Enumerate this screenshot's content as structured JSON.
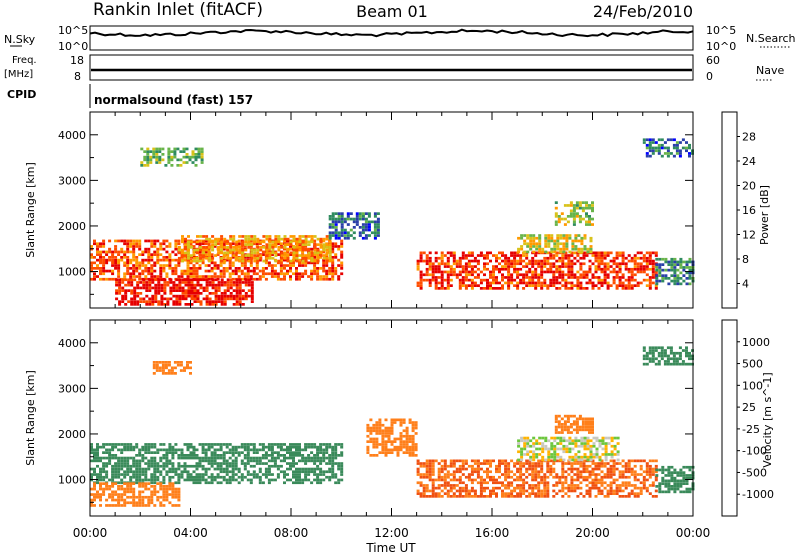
{
  "header": {
    "station": "Rankin Inlet (fitACF)",
    "beam": "Beam 01",
    "date": "24/Feb/2010"
  },
  "strip_panels": {
    "nsky": {
      "left_label": "N.Sky",
      "left_ticks": [
        "10^5",
        "10^0"
      ],
      "right_label": "N.Search",
      "right_ticks": [
        "10^5",
        "10^0"
      ]
    },
    "freq": {
      "left_label_1": "Freq.",
      "left_label_2": "[MHz]",
      "left_ticks": [
        "18",
        "8"
      ],
      "right_label": "Nave",
      "right_ticks": [
        "60",
        "0"
      ]
    },
    "cpid": {
      "label": "CPID",
      "text": "normalsound (fast) 157"
    }
  },
  "chart_data": [
    {
      "type": "heatmap",
      "title": "",
      "xlabel": "",
      "ylabel": "Slant Range [km]",
      "xlim_hours": [
        0,
        24
      ],
      "ylim_km": [
        200,
        4500
      ],
      "yticks": [
        1000,
        2000,
        3000,
        4000
      ],
      "colorbar": {
        "label": "Power [dB]",
        "ticks": [
          "4",
          "8",
          "12",
          "16",
          "20",
          "24",
          "28"
        ],
        "colors": [
          "#0000ff",
          "#2a3fa8",
          "#2f8b5f",
          "#68b449",
          "#d8c21a",
          "#ff9a00",
          "#ff4d00",
          "#e60000"
        ]
      },
      "regions": [
        {
          "t": [
            0.0,
            10.0
          ],
          "r": [
            800,
            1700
          ],
          "level": 24
        },
        {
          "t": [
            1.0,
            6.5
          ],
          "r": [
            250,
            800
          ],
          "level": 28
        },
        {
          "t": [
            3.5,
            9.5
          ],
          "r": [
            1200,
            1800
          ],
          "level": 20
        },
        {
          "t": [
            13.0,
            22.5
          ],
          "r": [
            600,
            1400
          ],
          "level": 26
        },
        {
          "t": [
            17.0,
            20.0
          ],
          "r": [
            1400,
            1800
          ],
          "level": 16
        },
        {
          "t": [
            18.5,
            20.0
          ],
          "r": [
            2000,
            2500
          ],
          "level": 14
        },
        {
          "t": [
            9.5,
            11.5
          ],
          "r": [
            1700,
            2300
          ],
          "level": 6
        },
        {
          "t": [
            2.0,
            4.5
          ],
          "r": [
            3300,
            3700
          ],
          "level": 12
        },
        {
          "t": [
            22.0,
            24.0
          ],
          "r": [
            3500,
            3900
          ],
          "level": 6
        },
        {
          "t": [
            22.5,
            24.0
          ],
          "r": [
            700,
            1300
          ],
          "level": 8
        }
      ]
    },
    {
      "type": "heatmap",
      "title": "",
      "xlabel": "Time UT",
      "ylabel": "Slant Range [km]",
      "xlim_hours": [
        0,
        24
      ],
      "ylim_km": [
        200,
        4500
      ],
      "yticks": [
        1000,
        2000,
        3000,
        4000
      ],
      "xticks": [
        "00:00",
        "04:00",
        "08:00",
        "12:00",
        "16:00",
        "20:00",
        "00:00"
      ],
      "colorbar": {
        "label": "Velocity [m s^-1]",
        "ticks": [
          "1000",
          "500",
          "100",
          "25",
          "-25",
          "-100",
          "-500",
          "-1000"
        ],
        "colors": [
          "#1a33c8",
          "#2d5fa5",
          "#3a8a5a",
          "#6cc63c",
          "#c8c8c0",
          "#ffb400",
          "#ff7f1a",
          "#f05010",
          "#e60000"
        ]
      },
      "regions": [
        {
          "t": [
            0.0,
            10.0
          ],
          "r": [
            900,
            1800
          ],
          "level": 200
        },
        {
          "t": [
            0.0,
            3.5
          ],
          "r": [
            400,
            900
          ],
          "level": -200
        },
        {
          "t": [
            13.0,
            22.5
          ],
          "r": [
            600,
            1400
          ],
          "level": -500
        },
        {
          "t": [
            17.0,
            21.0
          ],
          "r": [
            1400,
            1900
          ],
          "level": 0
        },
        {
          "t": [
            18.5,
            20.0
          ],
          "r": [
            2000,
            2400
          ],
          "level": -200
        },
        {
          "t": [
            11.0,
            13.0
          ],
          "r": [
            1500,
            2300
          ],
          "level": -200
        },
        {
          "t": [
            22.5,
            24.0
          ],
          "r": [
            700,
            1300
          ],
          "level": 200
        },
        {
          "t": [
            22.0,
            24.0
          ],
          "r": [
            3500,
            3900
          ],
          "level": 200
        },
        {
          "t": [
            2.5,
            4.0
          ],
          "r": [
            3300,
            3600
          ],
          "level": -200
        }
      ]
    }
  ]
}
